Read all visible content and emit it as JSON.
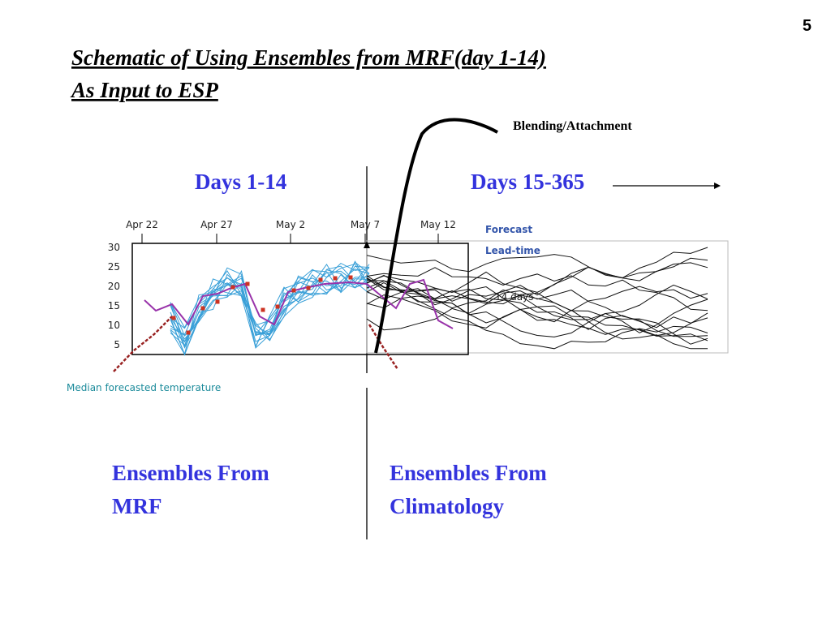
{
  "page_number": "5",
  "title": {
    "line1": "Schematic of Using Ensembles from MRF(day 1-14)",
    "line2": "As Input to ESP"
  },
  "blending_label": "Blending/Attachment",
  "period_left": "Days 1-14",
  "period_right": "Days 15-365",
  "chart": {
    "x_labels": [
      "Apr 22",
      "Apr 27",
      "May 2",
      "May 7",
      "May 12"
    ],
    "y_labels": [
      "30",
      "25",
      "20",
      "15",
      "10",
      "5"
    ],
    "forecast_label": "Forecast",
    "lead_time_label": "Lead-time",
    "days_label": "14 days",
    "caption": "Median forecasted temperature"
  },
  "bottom_left": {
    "line1": "Ensembles From",
    "line2": "MRF"
  },
  "bottom_right": {
    "line1": "Ensembles From",
    "line2": "Climatology"
  }
}
